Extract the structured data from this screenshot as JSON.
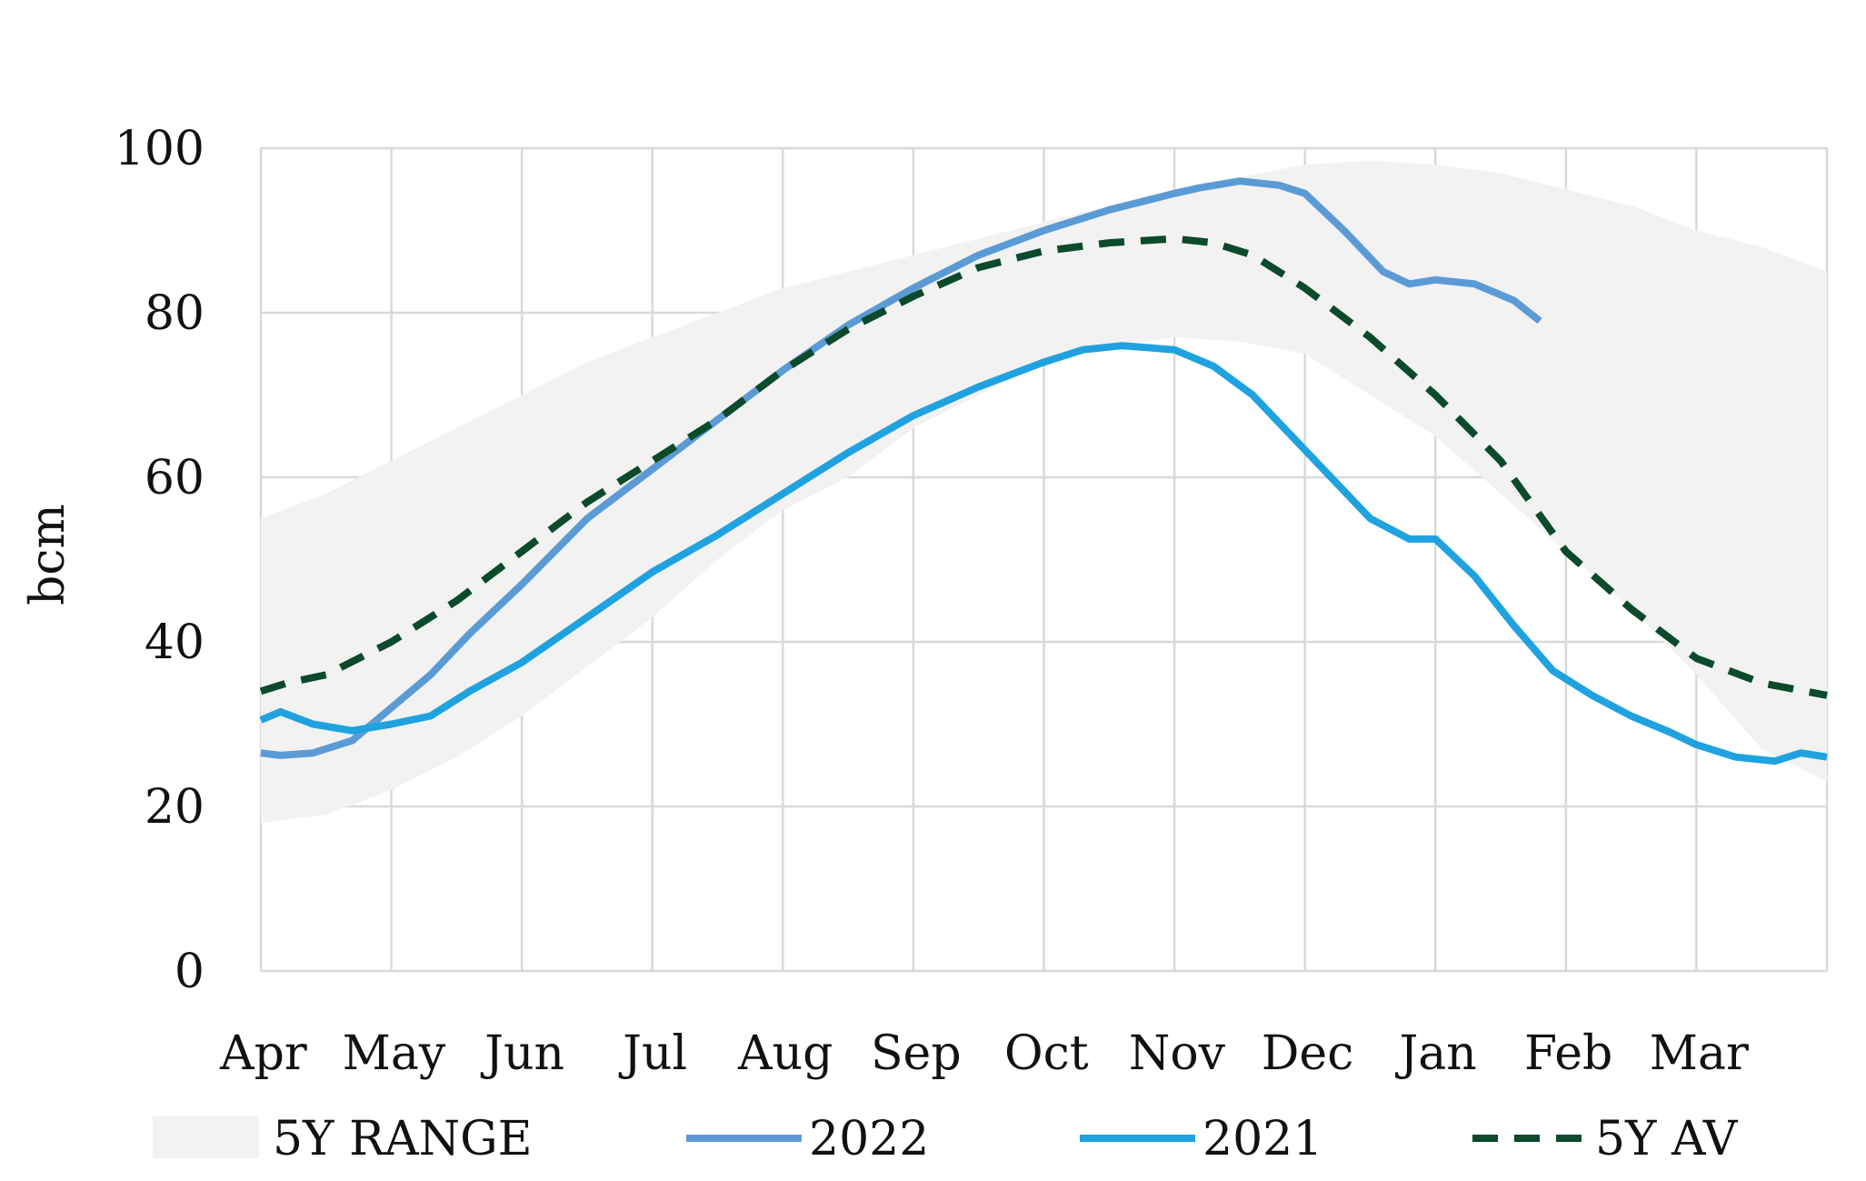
{
  "chart_data": {
    "type": "line",
    "title": "",
    "xlabel": "",
    "ylabel": "bcm",
    "ylim": [
      0,
      100
    ],
    "yticks": [
      0,
      20,
      40,
      60,
      80,
      100
    ],
    "months": [
      "Apr",
      "May",
      "Jun",
      "Jul",
      "Aug",
      "Sep",
      "Oct",
      "Nov",
      "Dec",
      "Jan",
      "Feb",
      "Mar"
    ],
    "grid": true,
    "legend_position": "bottom",
    "band": {
      "name": "5Y RANGE",
      "color": "#f2f2f2",
      "x": [
        0,
        0.5,
        1,
        1.5,
        2,
        2.5,
        3,
        3.5,
        4,
        4.5,
        5,
        5.5,
        6,
        6.5,
        7,
        7.5,
        8,
        8.5,
        9,
        9.5,
        10,
        10.5,
        11,
        11.5,
        12
      ],
      "upper": [
        55,
        58,
        62,
        66,
        70,
        74,
        77,
        80,
        83,
        85,
        87,
        89,
        91,
        93,
        95,
        96.5,
        98,
        98.5,
        98,
        97,
        95,
        93,
        90,
        88,
        85
      ],
      "lower": [
        18,
        19,
        22,
        26,
        31,
        37,
        43,
        50,
        56,
        60,
        66,
        70,
        74,
        76,
        77,
        76.5,
        75,
        70,
        65,
        58,
        51,
        44,
        36,
        27,
        23
      ]
    },
    "series": [
      {
        "name": "2022",
        "color": "#5b9bd5",
        "dash": "solid",
        "x": [
          0,
          0.15,
          0.4,
          0.7,
          1.0,
          1.3,
          1.6,
          2.0,
          2.5,
          3.0,
          3.5,
          4.0,
          4.5,
          5.0,
          5.5,
          6.0,
          6.5,
          7.0,
          7.2,
          7.5,
          7.8,
          8.0,
          8.3,
          8.6,
          8.8,
          9.0,
          9.3,
          9.6,
          9.8
        ],
        "values": [
          26.5,
          26.2,
          26.5,
          28.0,
          32.0,
          36.0,
          41.0,
          47.0,
          55.0,
          61.0,
          67.0,
          73.0,
          78.5,
          83.0,
          87.0,
          90.0,
          92.5,
          94.5,
          95.2,
          96.0,
          95.5,
          94.5,
          90.0,
          85.0,
          83.5,
          84.0,
          83.5,
          81.5,
          79.0
        ]
      },
      {
        "name": "2021",
        "color": "#1fa2df",
        "dash": "solid",
        "x": [
          0,
          0.15,
          0.4,
          0.7,
          1.0,
          1.3,
          1.6,
          2.0,
          2.5,
          3.0,
          3.5,
          4.0,
          4.5,
          5.0,
          5.5,
          6.0,
          6.3,
          6.6,
          7.0,
          7.3,
          7.6,
          7.9,
          8.2,
          8.5,
          8.8,
          9.0,
          9.3,
          9.6,
          9.9,
          10.2,
          10.5,
          10.8,
          11.0,
          11.3,
          11.6,
          11.8,
          12.0
        ],
        "values": [
          30.5,
          31.5,
          30.0,
          29.2,
          30.0,
          31.0,
          34.0,
          37.5,
          43.0,
          48.5,
          53.0,
          58.0,
          63.0,
          67.5,
          71.0,
          74.0,
          75.5,
          76.0,
          75.5,
          73.5,
          70.0,
          65.0,
          60.0,
          55.0,
          52.5,
          52.5,
          48.0,
          42.0,
          36.5,
          33.5,
          31.0,
          29.0,
          27.5,
          26.0,
          25.5,
          26.5,
          26.0
        ]
      },
      {
        "name": "5Y AV",
        "color": "#0b4a2a",
        "dash": "dashed",
        "x": [
          0,
          0.2,
          0.5,
          1.0,
          1.5,
          2.0,
          2.5,
          3.0,
          3.5,
          4.0,
          4.5,
          5.0,
          5.5,
          6.0,
          6.5,
          7.0,
          7.3,
          7.6,
          8.0,
          8.5,
          9.0,
          9.5,
          10.0,
          10.5,
          11.0,
          11.5,
          12.0
        ],
        "values": [
          34.0,
          35.0,
          36.0,
          40.0,
          45.0,
          51.0,
          57.0,
          62.0,
          67.0,
          73.0,
          78.0,
          82.0,
          85.5,
          87.5,
          88.5,
          89.0,
          88.5,
          87.0,
          83.0,
          77.0,
          70.0,
          62.0,
          51.0,
          44.0,
          38.0,
          35.0,
          33.5
        ]
      }
    ]
  }
}
